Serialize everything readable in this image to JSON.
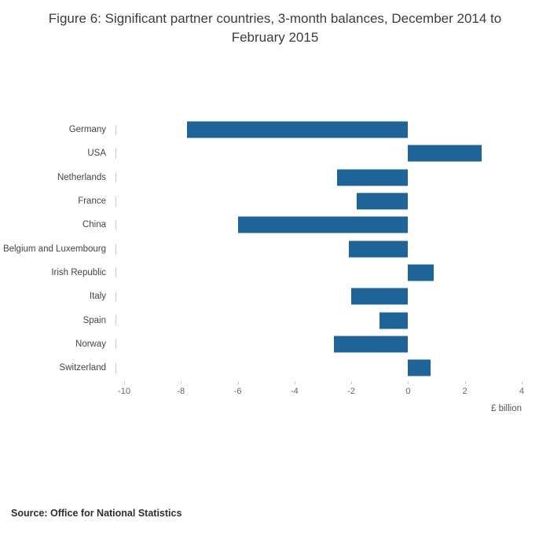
{
  "title": "Figure 6: Significant partner countries, 3-month balances, December 2014 to February 2015",
  "source": "Source: Office for National Statistics",
  "chart_data": {
    "type": "bar",
    "orientation": "horizontal",
    "title": "Figure 6: Significant partner countries, 3-month balances, December 2014 to February 2015",
    "categories": [
      "Germany",
      "USA",
      "Netherlands",
      "France",
      "China",
      "Belgium and Luxembourg",
      "Irish Republic",
      "Italy",
      "Spain",
      "Norway",
      "Switzerland"
    ],
    "values": [
      -7.8,
      2.6,
      -2.5,
      -1.8,
      -6.0,
      -2.1,
      0.9,
      -2.0,
      -1.0,
      -2.6,
      0.8
    ],
    "xlabel": "£ billion",
    "ylabel": "",
    "xlim": [
      -10,
      4
    ],
    "xticks": [
      -10,
      -8,
      -6,
      -4,
      -2,
      0,
      2,
      4
    ],
    "bar_color": "#1f6498",
    "grid": false,
    "legend": false
  }
}
